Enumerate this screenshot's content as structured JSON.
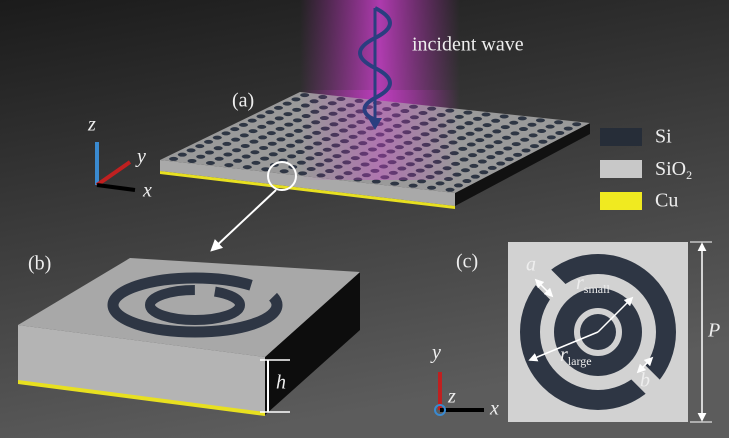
{
  "panel_a": {
    "label": "(a)",
    "wave_label": "incident wave",
    "axes": {
      "z": "z",
      "y": "y",
      "x": "x"
    }
  },
  "legend": [
    {
      "name": "Si"
    },
    {
      "name": {
        "base": "SiO",
        "sub": "2"
      }
    },
    {
      "name": "Cu"
    }
  ],
  "panel_b": {
    "label": "(b)",
    "height_label": "h"
  },
  "panel_c": {
    "label": "(c)",
    "a_label": "a",
    "r_small": {
      "base": "r",
      "sub": "small"
    },
    "r_large": {
      "base": "r",
      "sub": "large"
    },
    "b_label": "b",
    "period_label": "P",
    "axes": {
      "y": "y",
      "z": "z",
      "x": "x"
    }
  }
}
